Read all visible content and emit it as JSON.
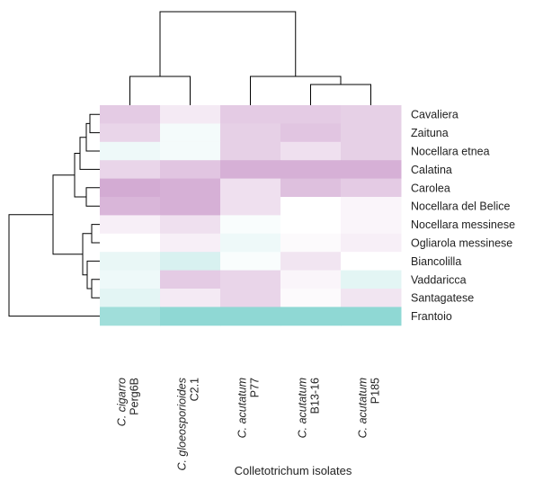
{
  "chart_data": {
    "type": "heatmap",
    "title": "",
    "xlabel": "Colletotrichum isolates",
    "ylabel": "",
    "columns": [
      {
        "species": "C. cigarro",
        "strain": "Perg6B"
      },
      {
        "species": "C. gloeosporioides",
        "strain": "C2.1"
      },
      {
        "species": "C. acutatum",
        "strain": "P77"
      },
      {
        "species": "C. acutatum",
        "strain": "B13-16"
      },
      {
        "species": "C. acutatum",
        "strain": "P185"
      }
    ],
    "rows": [
      "Cavaliera",
      "Zaituna",
      "Nocellara etnea",
      "Calatina",
      "Carolea",
      "Nocellara del Belice",
      "Nocellara messinese",
      "Ogliarola messinese",
      "Biancolilla",
      "Vaddaricca",
      "Santagatese",
      "Frantoio"
    ],
    "values": [
      [
        0.5,
        0.2,
        0.5,
        0.5,
        0.45
      ],
      [
        0.4,
        -0.1,
        0.45,
        0.55,
        0.45
      ],
      [
        -0.15,
        -0.1,
        0.45,
        0.3,
        0.45
      ],
      [
        0.4,
        0.55,
        0.75,
        0.75,
        0.75
      ],
      [
        0.8,
        0.75,
        0.3,
        0.6,
        0.5
      ],
      [
        0.7,
        0.75,
        0.3,
        0.0,
        0.1
      ],
      [
        0.15,
        0.3,
        -0.05,
        0.0,
        0.1
      ],
      [
        0.0,
        0.15,
        -0.15,
        0.05,
        0.15
      ],
      [
        -0.2,
        -0.35,
        -0.05,
        0.25,
        0.0
      ],
      [
        -0.15,
        0.5,
        0.4,
        0.1,
        -0.25
      ],
      [
        -0.25,
        0.2,
        0.4,
        0.05,
        0.25
      ],
      [
        -0.85,
        -1.0,
        -1.0,
        -1.0,
        -1.0
      ]
    ],
    "colors": {
      "low": "#8fd8d4",
      "mid": "#ffffff",
      "high": "#c896c8"
    },
    "grid": false,
    "legend": "none"
  }
}
